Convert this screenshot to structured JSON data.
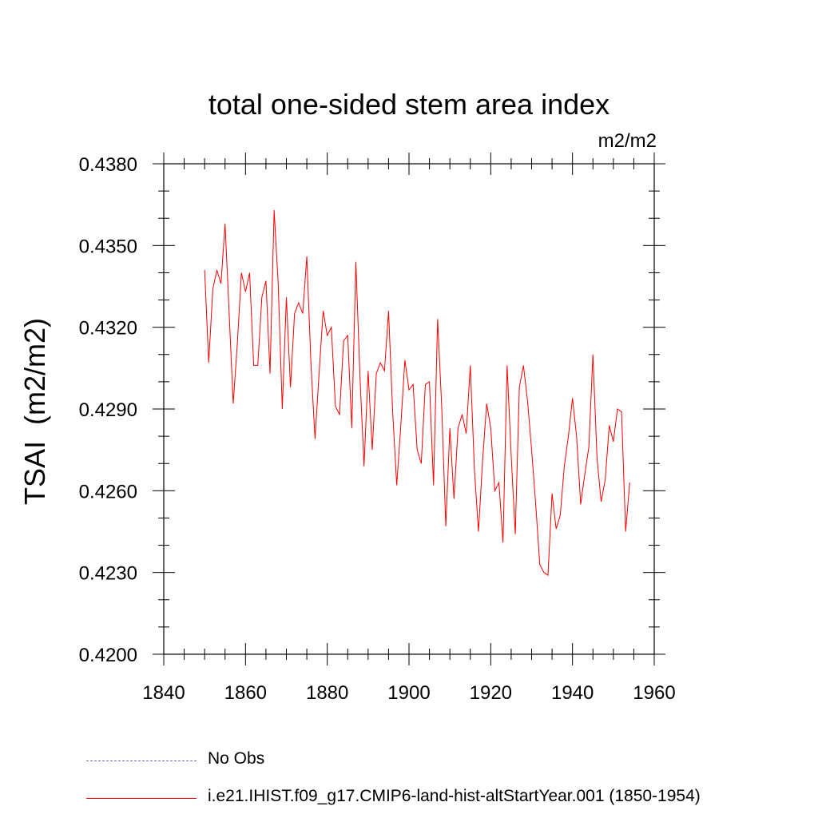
{
  "chart_data": {
    "type": "line",
    "title": "total one-sided stem area index",
    "units": "m2/m2",
    "ylabel": "TSAI  (m2/m2)",
    "xlabel": "",
    "xlim": [
      1840,
      1960
    ],
    "ylim": [
      0.42,
      0.438
    ],
    "x_ticks": [
      "1840",
      "1860",
      "1880",
      "1900",
      "1920",
      "1940",
      "1960"
    ],
    "y_ticks": [
      "0.4200",
      "0.4230",
      "0.4260",
      "0.4290",
      "0.4320",
      "0.4350",
      "0.4380"
    ],
    "grid": false,
    "legend_position": "bottom",
    "series": [
      {
        "name": "No Obs",
        "color": "#7070c8",
        "style": "dashed",
        "x": [],
        "values": []
      },
      {
        "name": "i.e21.IHIST.f09_g17.CMIP6-land-hist-altStartYear.001 (1850-1954)",
        "color": "#ff0000",
        "style": "solid",
        "x": [
          1850,
          1851,
          1852,
          1853,
          1854,
          1855,
          1856,
          1857,
          1858,
          1859,
          1860,
          1861,
          1862,
          1863,
          1864,
          1865,
          1866,
          1867,
          1868,
          1869,
          1870,
          1871,
          1872,
          1873,
          1874,
          1875,
          1876,
          1877,
          1878,
          1879,
          1880,
          1881,
          1882,
          1883,
          1884,
          1885,
          1886,
          1887,
          1888,
          1889,
          1890,
          1891,
          1892,
          1893,
          1894,
          1895,
          1896,
          1897,
          1898,
          1899,
          1900,
          1901,
          1902,
          1903,
          1904,
          1905,
          1906,
          1907,
          1908,
          1909,
          1910,
          1911,
          1912,
          1913,
          1914,
          1915,
          1916,
          1917,
          1918,
          1919,
          1920,
          1921,
          1922,
          1923,
          1924,
          1925,
          1926,
          1927,
          1928,
          1929,
          1930,
          1931,
          1932,
          1933,
          1934,
          1935,
          1936,
          1937,
          1938,
          1939,
          1940,
          1941,
          1942,
          1943,
          1944,
          1945,
          1946,
          1947,
          1948,
          1949,
          1950,
          1951,
          1952,
          1953,
          1954
        ],
        "values": [
          0.4341,
          0.4307,
          0.4334,
          0.4341,
          0.4336,
          0.4358,
          0.4325,
          0.4292,
          0.4314,
          0.434,
          0.4333,
          0.434,
          0.4306,
          0.4306,
          0.4331,
          0.4337,
          0.4303,
          0.4363,
          0.4336,
          0.429,
          0.4331,
          0.4298,
          0.4325,
          0.4329,
          0.4325,
          0.4346,
          0.4307,
          0.4279,
          0.4303,
          0.4326,
          0.4317,
          0.432,
          0.4291,
          0.4288,
          0.4315,
          0.4317,
          0.4283,
          0.4344,
          0.4302,
          0.4269,
          0.4304,
          0.4275,
          0.4303,
          0.4307,
          0.4304,
          0.4326,
          0.4289,
          0.4262,
          0.4284,
          0.4308,
          0.4297,
          0.4299,
          0.4275,
          0.427,
          0.4299,
          0.43,
          0.4262,
          0.4323,
          0.4291,
          0.4247,
          0.4283,
          0.4257,
          0.4283,
          0.4288,
          0.4281,
          0.4306,
          0.4268,
          0.4245,
          0.4271,
          0.4292,
          0.4283,
          0.426,
          0.4263,
          0.4241,
          0.4306,
          0.4273,
          0.4244,
          0.4298,
          0.4306,
          0.4293,
          0.4275,
          0.4255,
          0.4233,
          0.423,
          0.4229,
          0.4259,
          0.4246,
          0.4251,
          0.4269,
          0.428,
          0.4294,
          0.428,
          0.4255,
          0.4266,
          0.4276,
          0.431,
          0.4272,
          0.4256,
          0.4264,
          0.4284,
          0.4278,
          0.429,
          0.4289,
          0.4245,
          0.4263
        ]
      }
    ]
  }
}
